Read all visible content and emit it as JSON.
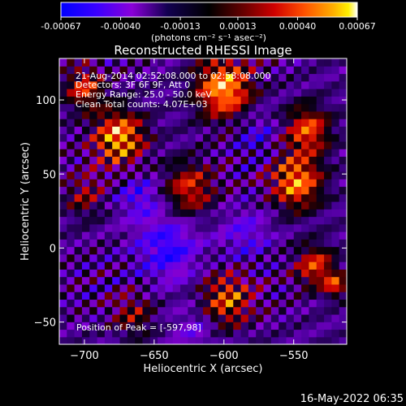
{
  "colorbar": {
    "tick_labels": [
      "-0.00067",
      "-0.00040",
      "-0.00013",
      "0.00013",
      "0.00040",
      "0.00067"
    ],
    "tick_values": [
      -0.00067,
      -0.0004,
      -0.00013,
      0.00013,
      0.0004,
      0.00067
    ],
    "range": [
      -0.00067,
      0.00067
    ],
    "unit_label": "(photons cm⁻² s⁻¹ asec⁻²)",
    "colors": [
      "#0000ff",
      "#4b00ff",
      "#8c00d8",
      "#00006a",
      "#000000",
      "#5a0000",
      "#c80000",
      "#ff4a00",
      "#ffa000",
      "#fff000",
      "#ffffff"
    ]
  },
  "chart_data": {
    "type": "heatmap",
    "title": "Reconstructed RHESSI Image",
    "xlabel": "Heliocentric X (arcsec)",
    "ylabel": "Heliocentric Y (arcsec)",
    "xlim": [
      -718,
      -512
    ],
    "ylim": [
      -65,
      128
    ],
    "x_ticks": [
      -700,
      -650,
      -600,
      -550
    ],
    "x_tick_labels": [
      "−700",
      "−650",
      "−600",
      "−550"
    ],
    "y_ticks": [
      -50,
      0,
      50,
      100
    ],
    "y_tick_labels": [
      "−50",
      "0",
      "50",
      "100"
    ],
    "peak": [
      -597,
      98
    ],
    "annotations": [
      "21-Aug-2014 02:52:08.000 to 02:58:08.000",
      "Detectors: 3F 6F 9F, Att 0",
      "Energy Range: 25.0 - 50.0 keV",
      "Clean     Total counts: 4.07E+03"
    ],
    "peak_label": "Position of Peak = [-597,98]",
    "grid": false
  },
  "footer": {
    "date": "16-May-2022 06:35"
  }
}
